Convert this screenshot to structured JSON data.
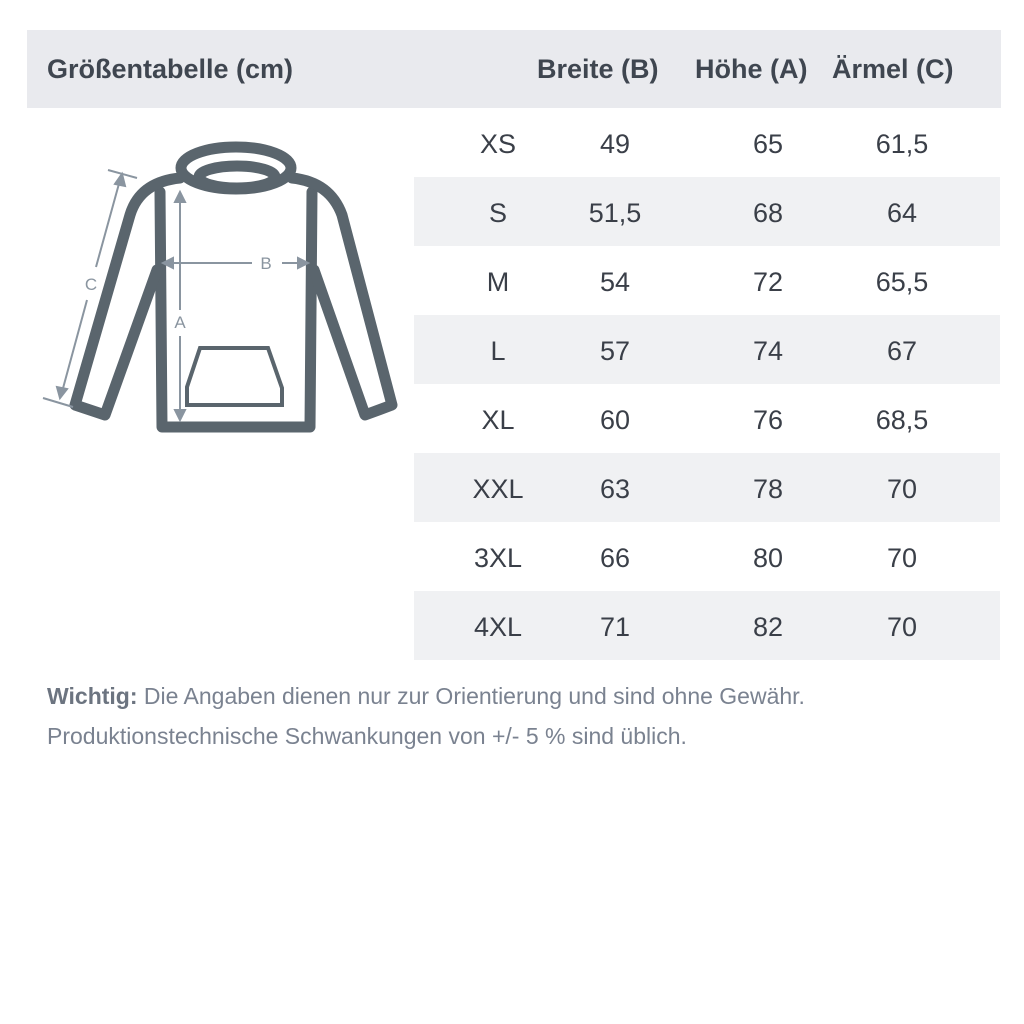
{
  "header": {
    "title": "Größentabelle (cm)",
    "columns": [
      "Breite (B)",
      "Höhe (A)",
      "Ärmel (C)"
    ]
  },
  "diagram": {
    "labels": {
      "a": "A",
      "b": "B",
      "c": "C"
    },
    "colors": {
      "outline": "#5a656d",
      "measure": "#8a95a0"
    }
  },
  "rows": [
    {
      "size": "XS",
      "breite": "49",
      "hoehe": "65",
      "aermel": "61,5"
    },
    {
      "size": "S",
      "breite": "51,5",
      "hoehe": "68",
      "aermel": "64"
    },
    {
      "size": "M",
      "breite": "54",
      "hoehe": "72",
      "aermel": "65,5"
    },
    {
      "size": "L",
      "breite": "57",
      "hoehe": "74",
      "aermel": "67"
    },
    {
      "size": "XL",
      "breite": "60",
      "hoehe": "76",
      "aermel": "68,5"
    },
    {
      "size": "XXL",
      "breite": "63",
      "hoehe": "78",
      "aermel": "70"
    },
    {
      "size": "3XL",
      "breite": "66",
      "hoehe": "80",
      "aermel": "70"
    },
    {
      "size": "4XL",
      "breite": "71",
      "hoehe": "82",
      "aermel": "70"
    }
  ],
  "note": {
    "label": "Wichtig:",
    "line1": " Die Angaben dienen nur zur Orientierung und sind ohne Gewähr.",
    "line2": "Produktionstechnische Schwankungen von +/- 5 % sind üblich."
  }
}
